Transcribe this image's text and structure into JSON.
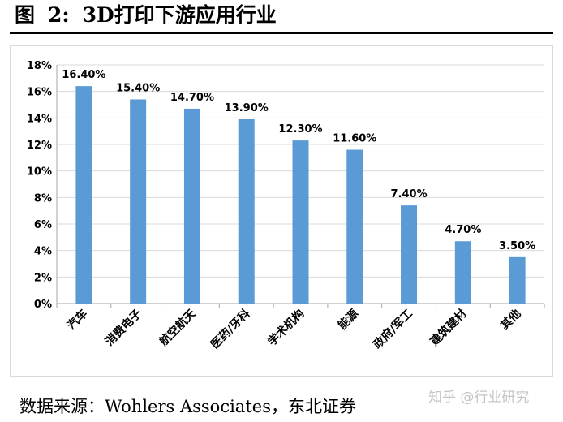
{
  "figure": {
    "label": "图",
    "number": "2:",
    "title": "3D打印下游应用行业"
  },
  "source_text": "数据来源：Wohlers Associates，东北证券",
  "watermark": "知乎 @行业研究",
  "chart_data": {
    "type": "bar",
    "categories": [
      "汽车",
      "消费电子",
      "航空航天",
      "医药/牙科",
      "学术机构",
      "能源",
      "政府/军工",
      "建筑建材",
      "其他"
    ],
    "values": [
      16.4,
      15.4,
      14.7,
      13.9,
      12.3,
      11.6,
      7.4,
      4.7,
      3.5
    ],
    "value_labels": [
      "16.40%",
      "15.40%",
      "14.70%",
      "13.90%",
      "12.30%",
      "11.60%",
      "7.40%",
      "4.70%",
      "3.50%"
    ],
    "y_ticks": [
      "0%",
      "2%",
      "4%",
      "6%",
      "8%",
      "10%",
      "12%",
      "14%",
      "16%",
      "18%"
    ],
    "ylim": [
      0,
      18
    ],
    "y_unit": "%",
    "grid": true,
    "legend": "none",
    "bar_color": "#5b9bd5",
    "grid_color": "#d9d9d9",
    "axis_color": "#a6a6a6"
  }
}
